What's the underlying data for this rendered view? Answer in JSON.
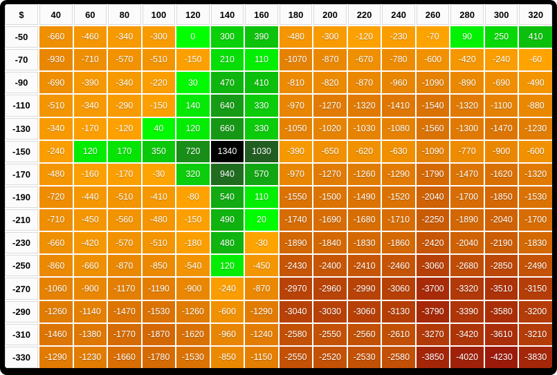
{
  "chart_data": {
    "type": "heatmap",
    "corner_label": "$",
    "x_labels": [
      "40",
      "60",
      "80",
      "100",
      "120",
      "140",
      "160",
      "180",
      "200",
      "220",
      "240",
      "260",
      "280",
      "300",
      "320"
    ],
    "y_labels": [
      "-50",
      "-70",
      "-90",
      "-110",
      "-130",
      "-150",
      "-170",
      "-190",
      "-210",
      "-230",
      "-250",
      "-270",
      "-290",
      "-310",
      "-330"
    ],
    "rows": [
      [
        -660,
        -460,
        -340,
        -300,
        0,
        300,
        390,
        -480,
        -300,
        -120,
        -230,
        -70,
        90,
        250,
        410
      ],
      [
        -930,
        -710,
        -570,
        -510,
        -150,
        210,
        110,
        -1070,
        -870,
        -670,
        -780,
        -600,
        -420,
        -240,
        -60
      ],
      [
        -690,
        -390,
        -340,
        -220,
        30,
        470,
        410,
        -810,
        -820,
        -870,
        -960,
        -1090,
        -890,
        -690,
        -490
      ],
      [
        -510,
        -340,
        -290,
        -150,
        140,
        640,
        330,
        -970,
        -1270,
        -1320,
        -1410,
        -1540,
        -1320,
        -1100,
        -880
      ],
      [
        -340,
        -170,
        -120,
        40,
        120,
        660,
        330,
        -1050,
        -1020,
        -1030,
        -1080,
        -1560,
        -1300,
        -1470,
        -1230
      ],
      [
        -240,
        120,
        170,
        350,
        720,
        1340,
        1030,
        -390,
        -650,
        -620,
        -630,
        -1090,
        -770,
        -900,
        -600
      ],
      [
        -480,
        -160,
        -170,
        -30,
        320,
        940,
        570,
        -970,
        -1270,
        -1260,
        -1290,
        -1790,
        -1470,
        -1620,
        -1320
      ],
      [
        -720,
        -440,
        -510,
        -410,
        -80,
        540,
        110,
        -1550,
        -1500,
        -1490,
        -1520,
        -2040,
        -1700,
        -1850,
        -1530
      ],
      [
        -710,
        -450,
        -560,
        -480,
        -150,
        490,
        20,
        -1740,
        -1690,
        -1680,
        -1710,
        -2250,
        -1890,
        -2040,
        -1700
      ],
      [
        -660,
        -420,
        -570,
        -510,
        -180,
        480,
        -30,
        -1890,
        -1840,
        -1830,
        -1860,
        -2420,
        -2040,
        -2190,
        -1830
      ],
      [
        -860,
        -660,
        -870,
        -850,
        -540,
        120,
        -450,
        -2430,
        -2400,
        -2410,
        -2460,
        -3060,
        -2680,
        -2850,
        -2490
      ],
      [
        -1060,
        -900,
        -1170,
        -1190,
        -900,
        -240,
        -870,
        -2970,
        -2960,
        -2990,
        -3060,
        -3700,
        -3320,
        -3510,
        -3150
      ],
      [
        -1260,
        -1140,
        -1470,
        -1530,
        -1260,
        -600,
        -1290,
        -3040,
        -3030,
        -3060,
        -3130,
        -3790,
        -3390,
        -3580,
        -3200
      ],
      [
        -1460,
        -1380,
        -1770,
        -1870,
        -1620,
        -960,
        -1240,
        -2580,
        -2550,
        -2560,
        -2610,
        -3270,
        -3420,
        -3610,
        -3210
      ],
      [
        -1290,
        -1230,
        -1660,
        -1780,
        -1530,
        -850,
        -1150,
        -2550,
        -2520,
        -2530,
        -2580,
        -3850,
        -4020,
        -4230,
        -3830
      ]
    ],
    "value_range": [
      -4230,
      1340
    ],
    "colors": {
      "positive_scale_start": "#00ff00",
      "positive_scale_end": "#2c2d2c",
      "negative_scale_start": "#ffa500",
      "negative_scale_end": "#9b1a0a",
      "max_cell_bg": "#000000",
      "cell_text": "#ffffff",
      "header_bg": "#fbfbfb",
      "header_text": "#000000",
      "frame_bg": "#000000",
      "gridline": "#ffffff"
    }
  }
}
